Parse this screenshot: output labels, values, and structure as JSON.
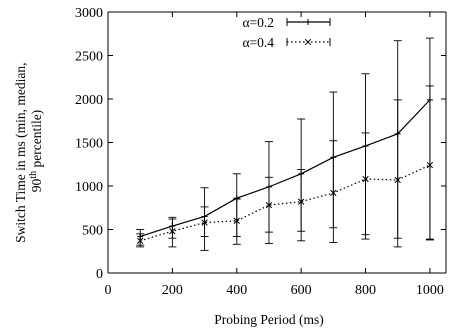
{
  "chart_data": {
    "type": "line",
    "xlabel": "Probing Period (ms)",
    "ylabel": {
      "line1": "Switch Time in ms (min, median,",
      "line2_base": "90",
      "line2_sup": "th",
      "line2_rest": " percentile)"
    },
    "xlim": [
      0,
      1050
    ],
    "ylim": [
      0,
      3000
    ],
    "xticks": [
      0,
      200,
      400,
      600,
      800,
      1000
    ],
    "yticks": [
      0,
      500,
      1000,
      1500,
      2000,
      2500,
      3000
    ],
    "grid": false,
    "legend_position": "top-center",
    "series": [
      {
        "name": "α=0.2",
        "line_style": "solid",
        "marker": "plus",
        "x": [
          100,
          200,
          300,
          400,
          500,
          600,
          700,
          800,
          900,
          1000
        ],
        "median": [
          420,
          540,
          650,
          860,
          990,
          1140,
          1330,
          1460,
          1600,
          1990
        ],
        "min": [
          320,
          400,
          420,
          420,
          470,
          480,
          520,
          440,
          300,
          380
        ],
        "p90": [
          500,
          620,
          980,
          1140,
          1510,
          1770,
          2080,
          2290,
          2670,
          2700
        ]
      },
      {
        "name": "α=0.4",
        "line_style": "dotted",
        "marker": "cross",
        "x": [
          100,
          200,
          300,
          400,
          500,
          600,
          700,
          800,
          900,
          1000
        ],
        "median": [
          370,
          480,
          580,
          600,
          780,
          820,
          920,
          1080,
          1070,
          1240
        ],
        "min": [
          300,
          300,
          260,
          330,
          340,
          370,
          350,
          390,
          400,
          390
        ],
        "p90": [
          450,
          640,
          760,
          850,
          1100,
          1190,
          1520,
          1610,
          1990,
          2150
        ]
      }
    ]
  }
}
